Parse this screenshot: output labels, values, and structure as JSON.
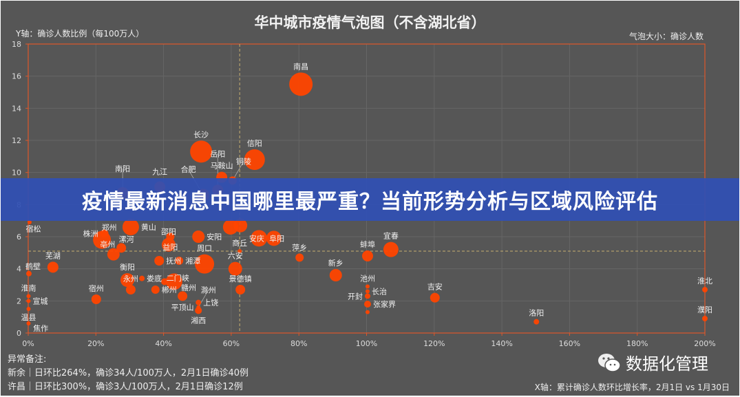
{
  "banner": {
    "text": "疫情最新消息中国哪里最严重？当前形势分析与区域风险评估"
  },
  "watermark": {
    "text": "数据化管理",
    "icon": "wechat-icon"
  },
  "notes": {
    "title": "异常备注:",
    "lines": [
      "新余｜日环比264%，确诊34人/100万人，2月1日确诊40例",
      "许昌｜日环比300%，确诊3人/100万人，2月1日确诊12例"
    ]
  },
  "chart_data": {
    "type": "scatter",
    "title": "华中城市疫情气泡图（不含湖北省）",
    "ylabel": "Y轴：确诊人数比例（每100万人）",
    "xlabel": "X轴：累计确诊人数环比增长率，2月1日 vs 1月30日",
    "size_label": "气泡大小：确诊人数",
    "xlim": [
      0,
      200
    ],
    "ylim": [
      0,
      18
    ],
    "x_ticks": [
      "0%",
      "20%",
      "40%",
      "60%",
      "80%",
      "100%",
      "120%",
      "140%",
      "160%",
      "180%",
      "200%"
    ],
    "y_ticks": [
      "0",
      "2",
      "4",
      "6",
      "8",
      "10",
      "12",
      "14",
      "16",
      "18"
    ],
    "reference_lines": {
      "x": 62.5,
      "y": 5.1
    },
    "grid": true,
    "colors": {
      "bubble": "#ff4500",
      "frame": "#e0582a",
      "reference": "#c8b070",
      "background": "#565656"
    },
    "points": [
      {
        "name": "南昌",
        "x": 80.6,
        "y": 15.5,
        "size": 17
      },
      {
        "name": "长沙",
        "x": 51.1,
        "y": 11.3,
        "size": 16
      },
      {
        "name": "信阳",
        "x": 66.9,
        "y": 10.8,
        "size": 15
      },
      {
        "name": "马鞍山",
        "x": 57.2,
        "y": 9.7,
        "size": 8
      },
      {
        "name": "铜陵",
        "x": 60.4,
        "y": 9.5,
        "size": 6
      },
      {
        "name": "九江",
        "x": 38.9,
        "y": 9.1,
        "size": 8
      },
      {
        "name": "南阳",
        "x": 27.9,
        "y": 8.7,
        "size": 9
      },
      {
        "name": "合肥",
        "x": 51.7,
        "y": 8.6,
        "size": 9
      },
      {
        "name": "岳阳",
        "x": 56.0,
        "y": 8.9,
        "size": 8
      },
      {
        "name": "宿松",
        "x": 0.4,
        "y": 6.9,
        "size": 3
      },
      {
        "name": "黄山",
        "x": 30.3,
        "y": 6.6,
        "size": 12
      },
      {
        "name": "郑州",
        "x": 21.8,
        "y": 5.8,
        "size": 13
      },
      {
        "name": "株洲",
        "x": 22.5,
        "y": 6.2,
        "size": 6
      },
      {
        "name": "漯河",
        "x": 27.5,
        "y": 5.3,
        "size": 7
      },
      {
        "name": "亳州",
        "x": 25.2,
        "y": 4.9,
        "size": 9
      },
      {
        "name": "邵阳",
        "x": 41.5,
        "y": 5.5,
        "size": 10
      },
      {
        "name": "益阳",
        "x": 42.0,
        "y": 6.0,
        "size": 6
      },
      {
        "name": "安阳",
        "x": 50.3,
        "y": 6.0,
        "size": 9
      },
      {
        "name": "阜阳",
        "x": 68.2,
        "y": 5.9,
        "size": 12
      },
      {
        "name": "安庆",
        "x": 72.6,
        "y": 5.9,
        "size": 11
      },
      {
        "name": "",
        "x": 59.8,
        "y": 6.6,
        "size": 11
      },
      {
        "name": "",
        "x": 62.7,
        "y": 6.7,
        "size": 10
      },
      {
        "name": "抚州",
        "x": 38.7,
        "y": 4.5,
        "size": 7
      },
      {
        "name": "湘潭",
        "x": 44.6,
        "y": 4.5,
        "size": 6
      },
      {
        "name": "周口",
        "x": 52.1,
        "y": 4.3,
        "size": 14
      },
      {
        "name": "商丘",
        "x": 62.5,
        "y": 5.1,
        "size": 3
      },
      {
        "name": "六安",
        "x": 61.2,
        "y": 4.0,
        "size": 10
      },
      {
        "name": "衡阳",
        "x": 29.3,
        "y": 3.3,
        "size": 10
      },
      {
        "name": "永州",
        "x": 30.3,
        "y": 2.7,
        "size": 7
      },
      {
        "name": "娄底",
        "x": 33.6,
        "y": 3.4,
        "size": 4
      },
      {
        "name": "郴州",
        "x": 37.6,
        "y": 2.7,
        "size": 6
      },
      {
        "name": "二门峡",
        "x": 40.3,
        "y": 3.2,
        "size": 5
      },
      {
        "name": "赣州",
        "x": 43.1,
        "y": 3.2,
        "size": 12
      },
      {
        "name": "平顶山",
        "x": 45.6,
        "y": 2.3,
        "size": 7
      },
      {
        "name": "上饶",
        "x": 50.3,
        "y": 1.9,
        "size": 4
      },
      {
        "name": "湘西",
        "x": 50.3,
        "y": 1.4,
        "size": 5
      },
      {
        "name": "景德镇",
        "x": 62.7,
        "y": 2.7,
        "size": 7
      },
      {
        "name": "滁州",
        "x": 50.3,
        "y": 1.6,
        "size": 3
      },
      {
        "name": "宿州",
        "x": 20.1,
        "y": 2.1,
        "size": 7
      },
      {
        "name": "芜湖",
        "x": 7.3,
        "y": 4.1,
        "size": 8
      },
      {
        "name": "鹤壁",
        "x": 0.2,
        "y": 3.7,
        "size": 4
      },
      {
        "name": "淮南",
        "x": 0.1,
        "y": 2.3,
        "size": 3
      },
      {
        "name": "宣城",
        "x": 0.1,
        "y": 2.0,
        "size": 3
      },
      {
        "name": "温县",
        "x": 0.1,
        "y": 1.5,
        "size": 3
      },
      {
        "name": "焦作",
        "x": 0.1,
        "y": 0.6,
        "size": 3
      },
      {
        "name": "萍乡",
        "x": 80.2,
        "y": 4.7,
        "size": 6
      },
      {
        "name": "蚌埠",
        "x": 100.3,
        "y": 4.8,
        "size": 8
      },
      {
        "name": "宜春",
        "x": 107.2,
        "y": 5.2,
        "size": 11
      },
      {
        "name": "新乡",
        "x": 90.9,
        "y": 3.6,
        "size": 9
      },
      {
        "name": "池州",
        "x": 100.3,
        "y": 2.9,
        "size": 3
      },
      {
        "name": "长治",
        "x": 100.3,
        "y": 2.6,
        "size": 3
      },
      {
        "name": "开封",
        "x": 100.3,
        "y": 2.3,
        "size": 4
      },
      {
        "name": "张家界",
        "x": 100.3,
        "y": 1.8,
        "size": 5
      },
      {
        "name": "",
        "x": 100.3,
        "y": 1.3,
        "size": 3
      },
      {
        "name": "吉安",
        "x": 120.2,
        "y": 2.2,
        "size": 7
      },
      {
        "name": "洛阳",
        "x": 150.2,
        "y": 0.7,
        "size": 4
      },
      {
        "name": "淮北",
        "x": 200,
        "y": 2.7,
        "size": 4
      },
      {
        "name": "濮阳",
        "x": 200,
        "y": 0.9,
        "size": 4
      }
    ]
  }
}
